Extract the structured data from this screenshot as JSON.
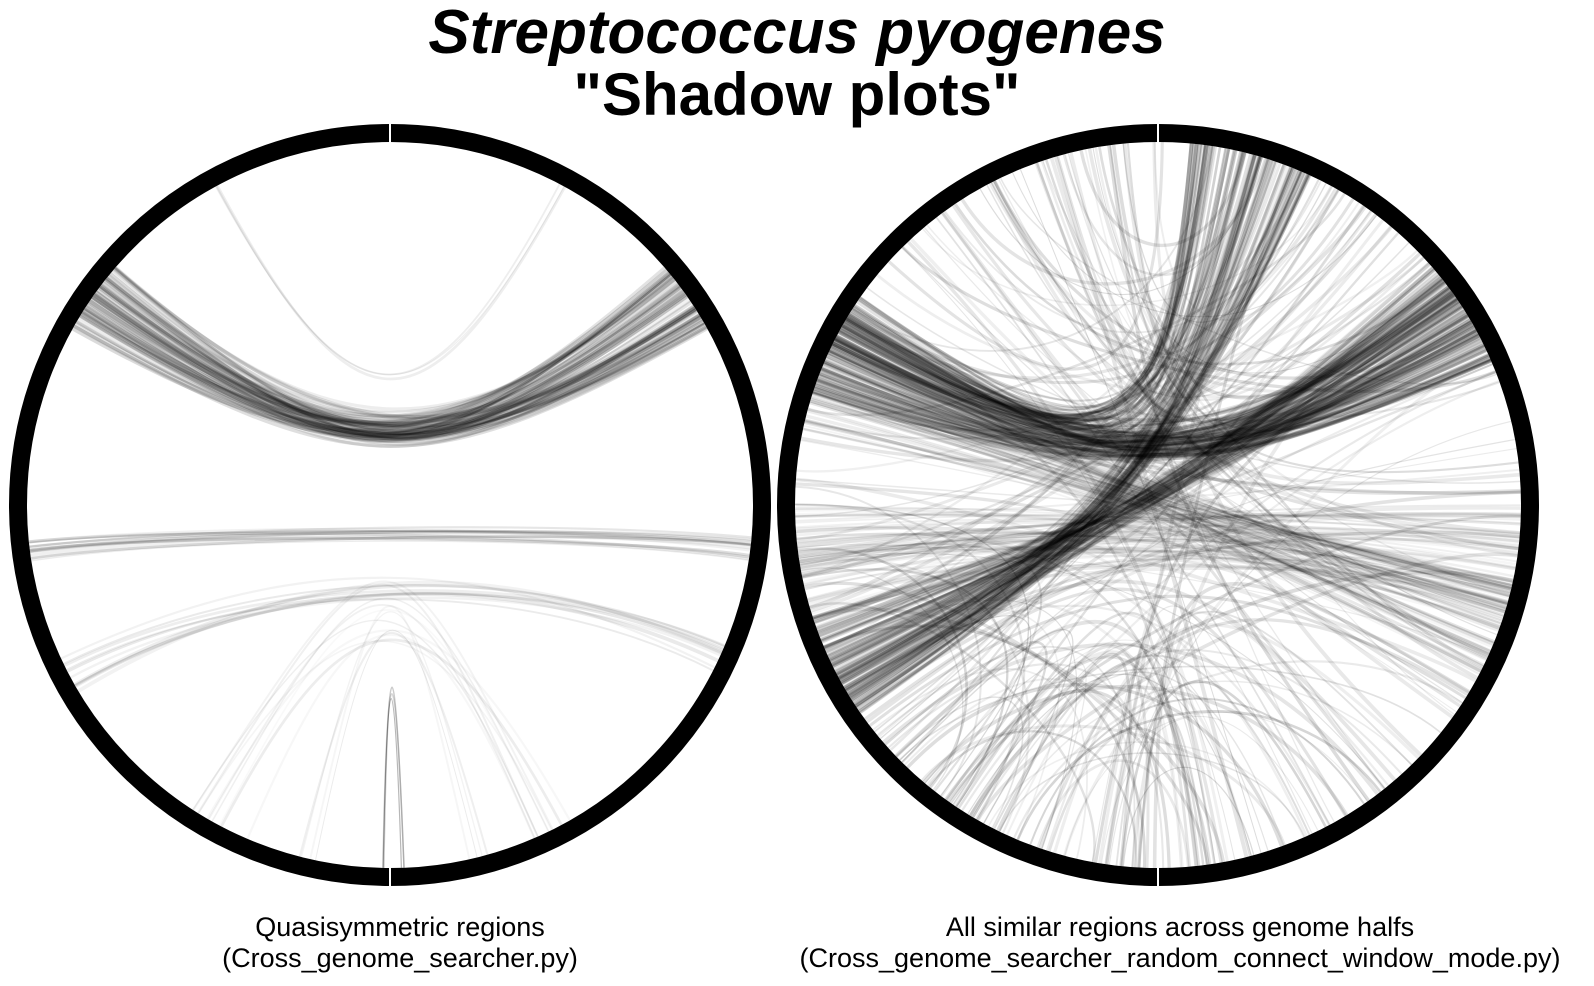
{
  "title": {
    "line1": "Streptococcus pyogenes",
    "line2": "\"Shadow plots\""
  },
  "panels": [
    {
      "caption_line1": "Quasisymmetric regions",
      "caption_line2": "(Cross_genome_searcher.py)"
    },
    {
      "caption_line1": "All similar regions across genome  halfs",
      "caption_line2": "(Cross_genome_searcher_random_connect_window_mode.py)"
    }
  ],
  "colors": {
    "ring": "#000000",
    "link": "#000000",
    "background": "#ffffff"
  }
}
